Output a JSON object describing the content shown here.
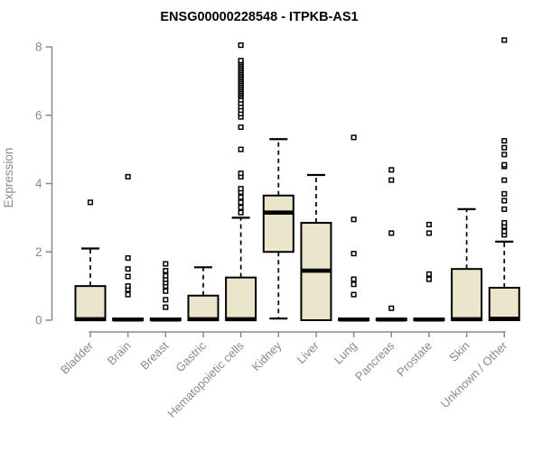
{
  "title": "ENSG00000228548 - ITPKB-AS1",
  "colors": {
    "background": "#ffffff",
    "box_fill": "#ebe6cb",
    "box_stroke": "#000000",
    "median": "#000000",
    "whisker": "#000000",
    "outlier_stroke": "#000000",
    "outlier_fill": "#ffffff",
    "axis": "#8a8a8a",
    "muted_text": "#8a8a8a",
    "title_text": "#000000"
  },
  "chart_data": {
    "type": "box",
    "title": "ENSG00000228548 - ITPKB-AS1",
    "xlabel": "",
    "ylabel": "Expression",
    "ylim": [
      0,
      8
    ],
    "yticks": [
      0,
      2,
      4,
      6,
      8
    ],
    "grid": false,
    "legend": "none",
    "categories": [
      "Bladder",
      "Brain",
      "Breast",
      "Gastric",
      "Hematopoietic cells",
      "Kidney",
      "Liver",
      "Lung",
      "Pancreas",
      "Prostate",
      "Skin",
      "Unknown / Other"
    ],
    "series": [
      {
        "name": "Bladder",
        "whisker_low": 0,
        "q1": 0,
        "median": 0.03,
        "q3": 1.0,
        "whisker_high": 2.1,
        "outliers": [
          3.45
        ]
      },
      {
        "name": "Brain",
        "whisker_low": 0,
        "q1": 0,
        "median": 0.02,
        "q3": 0.05,
        "whisker_high": 0.05,
        "outliers": [
          0.75,
          0.9,
          1.0,
          1.28,
          1.5,
          1.82,
          4.2
        ]
      },
      {
        "name": "Breast",
        "whisker_low": 0,
        "q1": 0,
        "median": 0.02,
        "q3": 0.05,
        "whisker_high": 0.05,
        "outliers": [
          0.38,
          0.6,
          0.85,
          1.0,
          1.1,
          1.2,
          1.3,
          1.45,
          1.65
        ]
      },
      {
        "name": "Gastric",
        "whisker_low": 0,
        "q1": 0,
        "median": 0.03,
        "q3": 0.72,
        "whisker_high": 1.55,
        "outliers": []
      },
      {
        "name": "Hematopoietic cells",
        "whisker_low": 0,
        "q1": 0,
        "median": 0.03,
        "q3": 1.25,
        "whisker_high": 3.0,
        "outliers": [
          3.15,
          3.3,
          3.45,
          3.6,
          3.75,
          3.85,
          4.2,
          4.3,
          5.0,
          5.65,
          5.95,
          6.05,
          6.15,
          6.25,
          6.35,
          6.45,
          6.55,
          6.6,
          6.65,
          6.7,
          6.75,
          6.8,
          6.85,
          6.9,
          6.95,
          7.0,
          7.05,
          7.1,
          7.15,
          7.2,
          7.25,
          7.3,
          7.35,
          7.4,
          7.45,
          7.5,
          7.55,
          7.6,
          8.05
        ]
      },
      {
        "name": "Kidney",
        "whisker_low": 0.05,
        "q1": 2.0,
        "median": 3.15,
        "q3": 3.65,
        "whisker_high": 5.3,
        "outliers": []
      },
      {
        "name": "Liver",
        "whisker_low": 0,
        "q1": 0,
        "median": 1.45,
        "q3": 2.85,
        "whisker_high": 4.25,
        "outliers": []
      },
      {
        "name": "Lung",
        "whisker_low": 0,
        "q1": 0,
        "median": 0.02,
        "q3": 0.05,
        "whisker_high": 0.05,
        "outliers": [
          0.75,
          1.05,
          1.2,
          1.95,
          2.95,
          5.35
        ]
      },
      {
        "name": "Pancreas",
        "whisker_low": 0,
        "q1": 0,
        "median": 0.02,
        "q3": 0.05,
        "whisker_high": 0.05,
        "outliers": [
          0.35,
          2.55,
          4.1,
          4.4
        ]
      },
      {
        "name": "Prostate",
        "whisker_low": 0,
        "q1": 0,
        "median": 0.02,
        "q3": 0.05,
        "whisker_high": 0.05,
        "outliers": [
          1.2,
          1.35,
          2.55,
          2.8
        ]
      },
      {
        "name": "Skin",
        "whisker_low": 0,
        "q1": 0,
        "median": 0.03,
        "q3": 1.5,
        "whisker_high": 3.25,
        "outliers": []
      },
      {
        "name": "Unknown / Other",
        "whisker_low": 0,
        "q1": 0,
        "median": 0.04,
        "q3": 0.95,
        "whisker_high": 2.3,
        "outliers": [
          2.5,
          2.6,
          2.75,
          2.85,
          3.25,
          3.5,
          3.7,
          4.1,
          4.5,
          4.55,
          4.85,
          5.05,
          5.25,
          8.2
        ]
      }
    ]
  }
}
